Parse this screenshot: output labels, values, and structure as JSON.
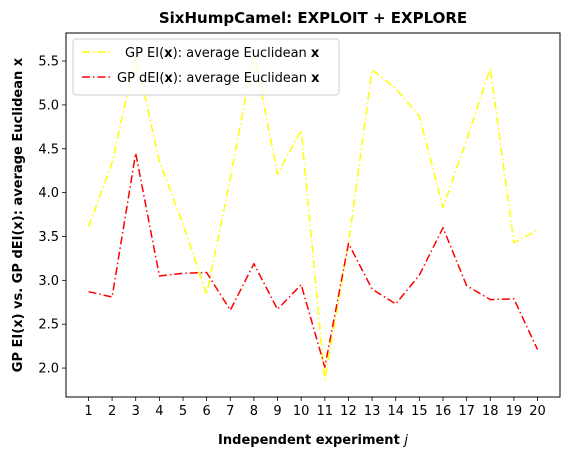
{
  "chart_data": {
    "type": "line",
    "title": "SixHumpCamel: EXPLOIT + EXPLORE",
    "xlabel": "Independent experiment",
    "xlabel_var": "j",
    "ylabel": "GP EI(x) vs. GP dEI(x): average Euclidean x",
    "x": [
      1,
      2,
      3,
      4,
      5,
      6,
      7,
      8,
      9,
      10,
      11,
      12,
      13,
      14,
      15,
      16,
      17,
      18,
      19,
      20
    ],
    "xlim": [
      0.05,
      20.95
    ],
    "ylim": [
      1.67,
      5.82
    ],
    "yticks": [
      2.0,
      2.5,
      3.0,
      3.5,
      4.0,
      4.5,
      5.0,
      5.5
    ],
    "ytick_labels": [
      "2.0",
      "2.5",
      "3.0",
      "3.5",
      "4.0",
      "4.5",
      "5.0",
      "5.5"
    ],
    "xtick_labels": [
      "1",
      "2",
      "3",
      "4",
      "5",
      "6",
      "7",
      "8",
      "9",
      "10",
      "11",
      "12",
      "13",
      "14",
      "15",
      "16",
      "17",
      "18",
      "19",
      "20"
    ],
    "legend_position": "top-left",
    "series": [
      {
        "name_prefix": "GP EI(",
        "name_bold": "x",
        "name_middle": "): average Euclidean ",
        "name_suffix": "x",
        "color": "#ffff00",
        "linestyle": "dashdot",
        "values": [
          3.61,
          4.34,
          5.56,
          4.36,
          3.64,
          2.84,
          4.16,
          5.59,
          4.21,
          4.71,
          1.87,
          3.42,
          5.4,
          5.19,
          4.87,
          3.83,
          4.6,
          5.42,
          3.43,
          3.57
        ]
      },
      {
        "name_prefix": "GP dEI(",
        "name_bold": "x",
        "name_middle": "): average Euclidean ",
        "name_suffix": "x",
        "color": "#ff0000",
        "linestyle": "dashdot",
        "values": [
          2.87,
          2.81,
          4.45,
          3.05,
          3.08,
          3.09,
          2.66,
          3.19,
          2.67,
          2.95,
          2.01,
          3.42,
          2.9,
          2.73,
          3.06,
          3.6,
          2.94,
          2.78,
          2.79,
          2.21
        ]
      }
    ]
  }
}
